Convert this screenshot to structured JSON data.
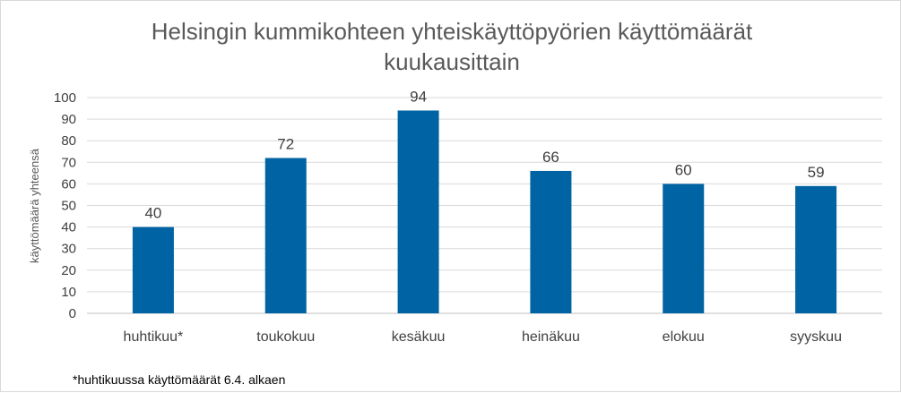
{
  "chart_data": {
    "type": "bar",
    "title_lines": [
      "Helsingin kummikohteen yhteiskäyttöpyörien  käyttömäärät",
      "kuukausittain"
    ],
    "xlabel": "",
    "ylabel": "käyttömäärä  yhteensä",
    "categories": [
      "huhtikuu*",
      "toukokuu",
      "kesäkuu",
      "heinäkuu",
      "elokuu",
      "syyskuu"
    ],
    "values": [
      40,
      72,
      94,
      66,
      60,
      59
    ],
    "ylim": [
      0,
      100
    ],
    "yticks": [
      "0",
      "10",
      "20",
      "30",
      "40",
      "50",
      "60",
      "70",
      "80",
      "90",
      "100"
    ],
    "grid": true,
    "data_labels": true,
    "bar_color": "#0063a3",
    "footnote": "*huhtikuussa käyttömäärät 6.4. alkaen"
  }
}
